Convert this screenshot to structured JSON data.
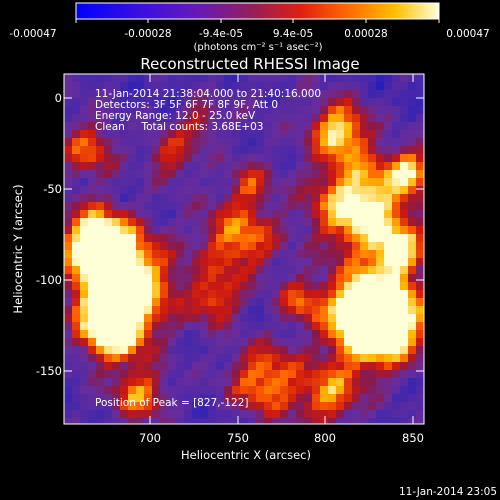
{
  "colorbar": {
    "tick_labels": [
      "-0.00047",
      "-0.00028",
      "-9.4e-05",
      "9.4e-05",
      "0.00028",
      "0.00047"
    ],
    "unit_label": "(photons cm⁻² s⁻¹ asec⁻²)"
  },
  "title": "Reconstructed RHESSI Image",
  "annotations": {
    "time_range": "11-Jan-2014 21:38:04.000 to 21:40:16.000",
    "detectors": "Detectors: 3F 5F 6F 7F 8F 9F, Att 0",
    "energy_range": "Energy Range: 12.0 - 25.0 keV",
    "method": "Clean     Total counts: 3.68E+03",
    "peak": "Position of Peak = [827,-122]"
  },
  "axes": {
    "xlabel": "Heliocentric X (arcsec)",
    "ylabel": "Heliocentric Y (arcsec)",
    "xticks": [
      "700",
      "750",
      "800",
      "850"
    ],
    "yticks": [
      "0",
      "-50",
      "-100",
      "-150"
    ]
  },
  "footer_timestamp": "11-Jan-2014 23:05",
  "colors": {
    "background": "#000000",
    "text": "#ffffff"
  }
}
